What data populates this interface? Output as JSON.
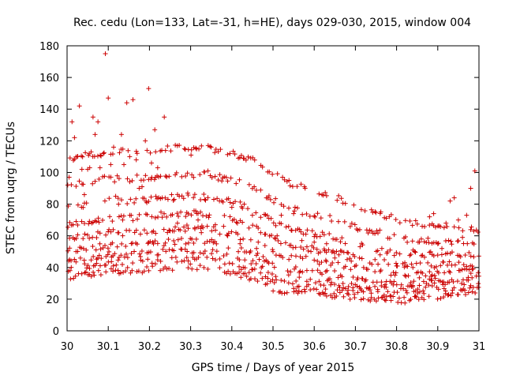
{
  "chart_data": {
    "type": "scatter",
    "title": "Rec. cedu (Lon=133, Lat=-31, h=HE), days 029-030, 2015, window 004",
    "xlabel": "GPS time / Days of year 2015",
    "ylabel": "STEC from uqrg / TECUs",
    "xlim": [
      30,
      31
    ],
    "ylim": [
      0,
      180
    ],
    "xticks": [
      "30",
      "30.1",
      "30.2",
      "30.3",
      "30.4",
      "30.5",
      "30.6",
      "30.7",
      "30.8",
      "30.9",
      "31"
    ],
    "yticks": [
      "0",
      "20",
      "40",
      "60",
      "80",
      "100",
      "120",
      "140",
      "160",
      "180"
    ],
    "series": [
      {
        "name": "STEC",
        "marker": "+",
        "color": "#cc0000",
        "baseline": [
          [
            30.0,
            34
          ],
          [
            30.05,
            36
          ],
          [
            30.1,
            38
          ],
          [
            30.15,
            38
          ],
          [
            30.2,
            39
          ],
          [
            30.25,
            40
          ],
          [
            30.3,
            41
          ],
          [
            30.35,
            40
          ],
          [
            30.4,
            37
          ],
          [
            30.45,
            33
          ],
          [
            30.5,
            27
          ],
          [
            30.55,
            24
          ],
          [
            30.6,
            23
          ],
          [
            30.65,
            23
          ],
          [
            30.7,
            21
          ],
          [
            30.75,
            20
          ],
          [
            30.8,
            19
          ],
          [
            30.85,
            20
          ],
          [
            30.9,
            22
          ],
          [
            30.95,
            24
          ],
          [
            31.0,
            26
          ]
        ],
        "band_offsets": [
          0,
          5,
          10,
          16,
          24,
          33,
          44,
          58,
          75
        ],
        "step": 0.004,
        "x": [
          30.005,
          30.012,
          30.018,
          30.025,
          30.03,
          30.036,
          30.042,
          30.05,
          30.055,
          30.063,
          30.068,
          30.075,
          30.08,
          30.088,
          30.093,
          30.1,
          30.106,
          30.113,
          30.118,
          30.125,
          30.132,
          30.138,
          30.145,
          30.152,
          30.16,
          30.168,
          30.175,
          30.182,
          30.19,
          30.198,
          30.205,
          30.213,
          30.22,
          30.228,
          30.236,
          30.245,
          30.252,
          30.26,
          30.268,
          30.276,
          30.285,
          30.293,
          30.301,
          30.31,
          30.318,
          30.326,
          30.334,
          30.342,
          30.35,
          30.36,
          30.37,
          30.38,
          30.39,
          30.4,
          30.41,
          30.42,
          30.43,
          30.45,
          30.46,
          30.47,
          30.48,
          30.5,
          30.51,
          30.52,
          30.54,
          30.55,
          30.57,
          30.58,
          30.6,
          30.61,
          30.63,
          30.65,
          30.66,
          30.68,
          30.69,
          30.71,
          30.72,
          30.74,
          30.76,
          30.78,
          30.8,
          30.82,
          30.84,
          30.86,
          30.88,
          30.89,
          30.9,
          30.91,
          30.92,
          30.93,
          30.94,
          30.95,
          30.96,
          30.97,
          30.98,
          30.99
        ],
        "y": [
          97,
          132,
          122,
          110,
          142,
          102,
          86,
          102,
          103,
          135,
          124,
          132,
          103,
          112,
          175,
          147,
          105,
          116,
          85,
          80,
          124,
          105,
          144,
          110,
          146,
          108,
          90,
          91,
          120,
          153,
          106,
          127,
          103,
          75,
          135,
          83,
          73,
          83,
          68,
          75,
          115,
          87,
          111,
          65,
          70,
          62,
          83,
          101,
          116,
          67,
          82,
          66,
          60,
          78,
          62,
          55,
          80,
          73,
          52,
          62,
          61,
          50,
          60,
          73,
          54,
          74,
          57,
          47,
          56,
          49,
          55,
          46,
          48,
          45,
          44,
          46,
          40,
          42,
          48,
          42,
          41,
          43,
          51,
          58,
          72,
          74,
          55,
          52,
          68,
          82,
          84,
          70,
          59,
          73,
          90,
          101
        ]
      }
    ]
  }
}
